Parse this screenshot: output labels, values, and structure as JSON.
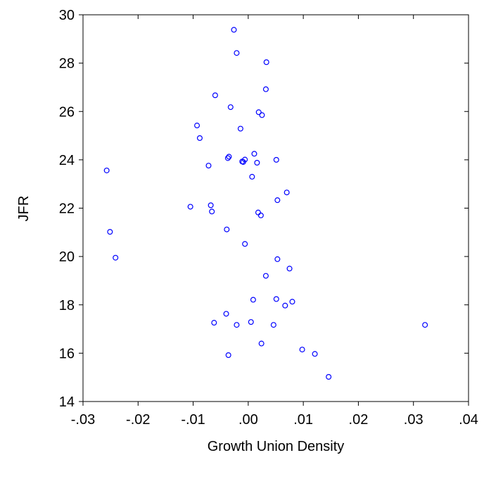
{
  "chart_data": {
    "type": "scatter",
    "xlabel": "Growth Union Density",
    "ylabel": "JFR",
    "xlim": [
      -0.03,
      0.04
    ],
    "ylim": [
      14,
      30
    ],
    "xticks": [
      -0.03,
      -0.02,
      -0.01,
      0.0,
      0.01,
      0.02,
      0.03,
      0.04
    ],
    "xtick_labels": [
      "-.03",
      "-.02",
      "-.01",
      ".00",
      ".01",
      ".02",
      ".03",
      ".04"
    ],
    "yticks": [
      14,
      16,
      18,
      20,
      22,
      24,
      26,
      28,
      30
    ],
    "ytick_labels": [
      "14",
      "16",
      "18",
      "20",
      "22",
      "24",
      "26",
      "28",
      "30"
    ],
    "grid": false,
    "marker_color": "#0000ff",
    "points": [
      {
        "x": -0.0026,
        "y": 29.38
      },
      {
        "x": -0.0021,
        "y": 28.42
      },
      {
        "x": 0.0033,
        "y": 28.04
      },
      {
        "x": 0.0032,
        "y": 26.92
      },
      {
        "x": -0.006,
        "y": 26.67
      },
      {
        "x": -0.0032,
        "y": 26.18
      },
      {
        "x": 0.0019,
        "y": 25.97
      },
      {
        "x": 0.0025,
        "y": 25.85
      },
      {
        "x": -0.0093,
        "y": 25.42
      },
      {
        "x": -0.0014,
        "y": 25.29
      },
      {
        "x": -0.0088,
        "y": 24.9
      },
      {
        "x": 0.0011,
        "y": 24.25
      },
      {
        "x": -0.0035,
        "y": 24.13
      },
      {
        "x": -0.0037,
        "y": 24.07
      },
      {
        "x": -0.0006,
        "y": 24.01
      },
      {
        "x": 0.0051,
        "y": 24.0
      },
      {
        "x": -0.0011,
        "y": 23.93
      },
      {
        "x": -0.0009,
        "y": 23.91
      },
      {
        "x": 0.0016,
        "y": 23.88
      },
      {
        "x": -0.0072,
        "y": 23.76
      },
      {
        "x": -0.0257,
        "y": 23.56
      },
      {
        "x": 0.0007,
        "y": 23.3
      },
      {
        "x": 0.007,
        "y": 22.65
      },
      {
        "x": 0.0053,
        "y": 22.33
      },
      {
        "x": -0.0068,
        "y": 22.12
      },
      {
        "x": -0.0105,
        "y": 22.06
      },
      {
        "x": -0.0066,
        "y": 21.86
      },
      {
        "x": 0.0018,
        "y": 21.82
      },
      {
        "x": 0.0023,
        "y": 21.7
      },
      {
        "x": -0.0039,
        "y": 21.12
      },
      {
        "x": -0.0251,
        "y": 21.02
      },
      {
        "x": -0.0006,
        "y": 20.52
      },
      {
        "x": -0.0241,
        "y": 19.95
      },
      {
        "x": 0.0053,
        "y": 19.89
      },
      {
        "x": 0.0075,
        "y": 19.5
      },
      {
        "x": 0.0032,
        "y": 19.2
      },
      {
        "x": 0.0009,
        "y": 18.21
      },
      {
        "x": 0.0051,
        "y": 18.24
      },
      {
        "x": 0.008,
        "y": 18.13
      },
      {
        "x": 0.0067,
        "y": 17.97
      },
      {
        "x": -0.004,
        "y": 17.63
      },
      {
        "x": -0.0062,
        "y": 17.26
      },
      {
        "x": 0.0005,
        "y": 17.29
      },
      {
        "x": -0.0021,
        "y": 17.17
      },
      {
        "x": 0.0046,
        "y": 17.17
      },
      {
        "x": 0.0321,
        "y": 17.17
      },
      {
        "x": 0.0024,
        "y": 16.4
      },
      {
        "x": 0.0098,
        "y": 16.15
      },
      {
        "x": 0.0121,
        "y": 15.97
      },
      {
        "x": -0.0036,
        "y": 15.92
      },
      {
        "x": 0.0146,
        "y": 15.02
      }
    ]
  }
}
